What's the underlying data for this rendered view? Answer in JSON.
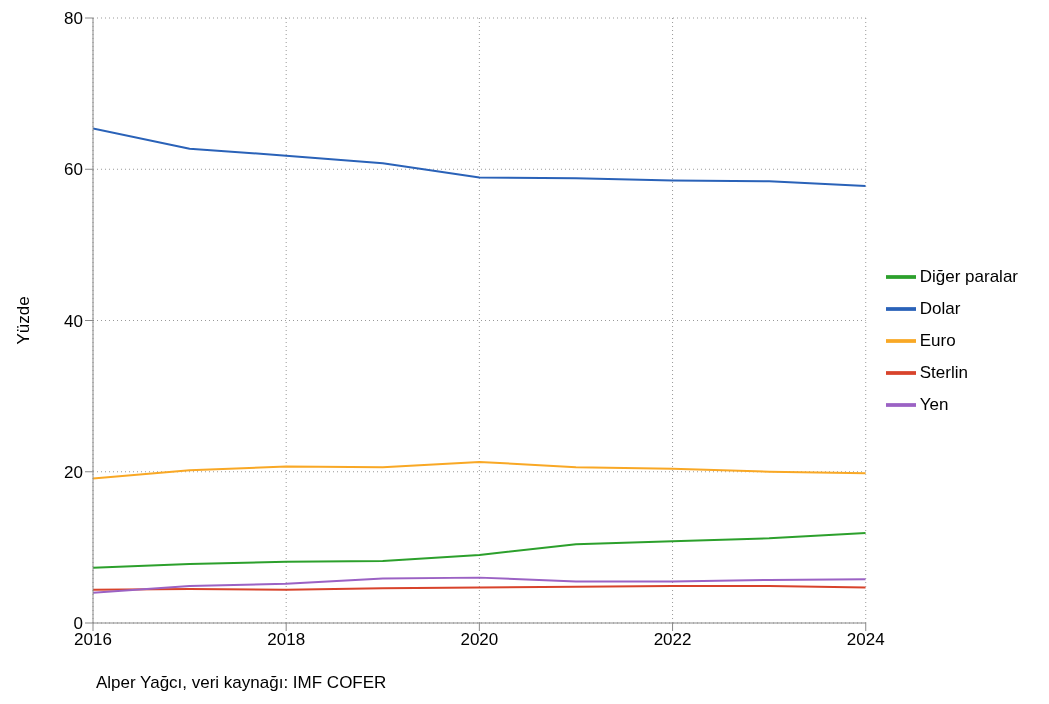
{
  "chart_data": {
    "type": "line",
    "ylabel": "Yüzde",
    "x": [
      2016,
      2017,
      2018,
      2019,
      2020,
      2021,
      2022,
      2023,
      2024
    ],
    "series": [
      {
        "name": "Dolar",
        "color": "#2a62b8",
        "values": [
          65.4,
          62.7,
          61.8,
          60.8,
          58.9,
          58.8,
          58.5,
          58.4,
          57.8
        ]
      },
      {
        "name": "Euro",
        "color": "#f9a825",
        "values": [
          19.1,
          20.2,
          20.7,
          20.6,
          21.3,
          20.6,
          20.4,
          20.0,
          19.8
        ]
      },
      {
        "name": "Diğer paralar",
        "color": "#2ca02c",
        "values": [
          7.3,
          7.8,
          8.1,
          8.2,
          9.0,
          10.4,
          10.8,
          11.2,
          11.9
        ]
      },
      {
        "name": "Sterlin",
        "color": "#d8432b",
        "values": [
          4.4,
          4.5,
          4.4,
          4.6,
          4.7,
          4.8,
          4.9,
          4.9,
          4.7
        ]
      },
      {
        "name": "Yen",
        "color": "#9b62c4",
        "values": [
          4.0,
          4.9,
          5.2,
          5.9,
          6.0,
          5.5,
          5.5,
          5.7,
          5.8
        ]
      }
    ],
    "xlim": [
      2016,
      2024
    ],
    "xticks": [
      2016,
      2018,
      2020,
      2022,
      2024
    ],
    "ylim": [
      0,
      80
    ],
    "yticks": [
      0,
      20,
      40,
      60,
      80
    ],
    "grid": true,
    "legend": "right",
    "line_style": "solid",
    "marker": "none",
    "annotations": [
      "Alper Yağcı, veri kaynağı: IMF COFER"
    ]
  }
}
